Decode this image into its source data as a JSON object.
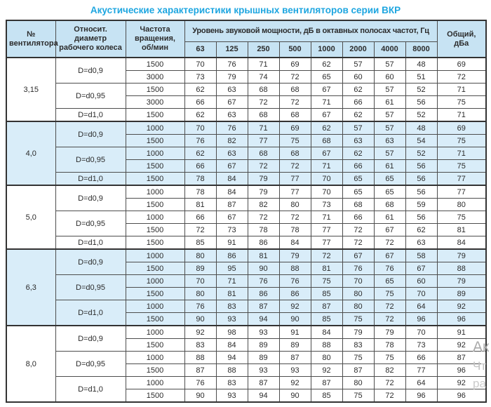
{
  "title": "Акустические характеристики крышных вентиляторов серии ВКР",
  "colors": {
    "title_accent": "#1ea6e0",
    "header_fill": "#c7e3f3",
    "shaded_row_fill": "#d9edf9",
    "border": "#4d4d4d",
    "outer_border": "#333333",
    "text": "#2b2b2b"
  },
  "table": {
    "header": {
      "fan_no": "№ вентилятора",
      "rel_diameter": "Относит. диаметр рабочего колеса",
      "speed": "Частота вращения, об/мин",
      "octave_span": "Уровень звуковой мощности, дБ в октавных полосах частот, Гц",
      "octave_bands": [
        "63",
        "125",
        "250",
        "500",
        "1000",
        "2000",
        "4000",
        "8000"
      ],
      "total": "Общий, дБа"
    },
    "groups": [
      {
        "fan": "3,15",
        "shaded": false,
        "diameters": [
          {
            "label": "D=d0,9",
            "rows": [
              {
                "speed": "1500",
                "levels": [
                  70,
                  76,
                  71,
                  69,
                  62,
                  57,
                  57,
                  48
                ],
                "total": 69
              },
              {
                "speed": "3000",
                "levels": [
                  73,
                  79,
                  74,
                  72,
                  65,
                  60,
                  60,
                  51
                ],
                "total": 72
              }
            ]
          },
          {
            "label": "D=d0,95",
            "rows": [
              {
                "speed": "1500",
                "levels": [
                  62,
                  63,
                  68,
                  68,
                  67,
                  62,
                  57,
                  52
                ],
                "total": 71
              },
              {
                "speed": "3000",
                "levels": [
                  66,
                  67,
                  72,
                  72,
                  71,
                  66,
                  61,
                  56
                ],
                "total": 75
              }
            ]
          },
          {
            "label": "D=d1,0",
            "rows": [
              {
                "speed": "1500",
                "levels": [
                  62,
                  63,
                  68,
                  68,
                  67,
                  62,
                  57,
                  52
                ],
                "total": 71
              }
            ]
          }
        ]
      },
      {
        "fan": "4,0",
        "shaded": true,
        "diameters": [
          {
            "label": "D=d0,9",
            "rows": [
              {
                "speed": "1000",
                "levels": [
                  70,
                  76,
                  71,
                  69,
                  62,
                  57,
                  57,
                  48
                ],
                "total": 69
              },
              {
                "speed": "1500",
                "levels": [
                  76,
                  82,
                  77,
                  75,
                  68,
                  63,
                  63,
                  54
                ],
                "total": 75
              }
            ]
          },
          {
            "label": "D=d0,95",
            "rows": [
              {
                "speed": "1000",
                "levels": [
                  62,
                  63,
                  68,
                  68,
                  67,
                  62,
                  57,
                  52
                ],
                "total": 71
              },
              {
                "speed": "1500",
                "levels": [
                  66,
                  67,
                  72,
                  72,
                  71,
                  66,
                  61,
                  56
                ],
                "total": 75
              }
            ]
          },
          {
            "label": "D=d1,0",
            "rows": [
              {
                "speed": "1500",
                "levels": [
                  78,
                  84,
                  79,
                  77,
                  70,
                  65,
                  65,
                  56
                ],
                "total": 77
              }
            ]
          }
        ]
      },
      {
        "fan": "5,0",
        "shaded": false,
        "diameters": [
          {
            "label": "D=d0,9",
            "rows": [
              {
                "speed": "1000",
                "levels": [
                  78,
                  84,
                  79,
                  77,
                  70,
                  65,
                  65,
                  56
                ],
                "total": 77
              },
              {
                "speed": "1500",
                "levels": [
                  81,
                  87,
                  82,
                  80,
                  73,
                  68,
                  68,
                  59
                ],
                "total": 80
              }
            ]
          },
          {
            "label": "D=d0,95",
            "rows": [
              {
                "speed": "1000",
                "levels": [
                  66,
                  67,
                  72,
                  72,
                  71,
                  66,
                  61,
                  56
                ],
                "total": 75
              },
              {
                "speed": "1500",
                "levels": [
                  72,
                  73,
                  78,
                  78,
                  77,
                  72,
                  67,
                  62
                ],
                "total": 81
              }
            ]
          },
          {
            "label": "D=d1,0",
            "rows": [
              {
                "speed": "1500",
                "levels": [
                  85,
                  91,
                  86,
                  84,
                  77,
                  72,
                  72,
                  63
                ],
                "total": 84
              }
            ]
          }
        ]
      },
      {
        "fan": "6,3",
        "shaded": true,
        "diameters": [
          {
            "label": "D=d0,9",
            "rows": [
              {
                "speed": "1000",
                "levels": [
                  80,
                  86,
                  81,
                  79,
                  72,
                  67,
                  67,
                  58
                ],
                "total": 79
              },
              {
                "speed": "1500",
                "levels": [
                  89,
                  95,
                  90,
                  88,
                  81,
                  76,
                  76,
                  67
                ],
                "total": 88
              }
            ]
          },
          {
            "label": "D=d0,95",
            "rows": [
              {
                "speed": "1000",
                "levels": [
                  70,
                  71,
                  76,
                  76,
                  75,
                  70,
                  65,
                  60
                ],
                "total": 79
              },
              {
                "speed": "1500",
                "levels": [
                  80,
                  81,
                  86,
                  86,
                  85,
                  80,
                  75,
                  70
                ],
                "total": 89
              }
            ]
          },
          {
            "label": "D=d1,0",
            "rows": [
              {
                "speed": "1000",
                "levels": [
                  76,
                  83,
                  87,
                  92,
                  87,
                  80,
                  72,
                  64
                ],
                "total": 92
              },
              {
                "speed": "1500",
                "levels": [
                  90,
                  93,
                  94,
                  90,
                  85,
                  75,
                  72,
                  96
                ],
                "total": 96
              }
            ]
          }
        ]
      },
      {
        "fan": "8,0",
        "shaded": false,
        "diameters": [
          {
            "label": "D=d0,9",
            "rows": [
              {
                "speed": "1000",
                "levels": [
                  92,
                  98,
                  93,
                  91,
                  84,
                  79,
                  79,
                  70
                ],
                "total": 91
              },
              {
                "speed": "1500",
                "levels": [
                  83,
                  84,
                  89,
                  89,
                  88,
                  83,
                  78,
                  73
                ],
                "total": 92
              }
            ]
          },
          {
            "label": "D=d0,95",
            "rows": [
              {
                "speed": "1000",
                "levels": [
                  88,
                  94,
                  89,
                  87,
                  80,
                  75,
                  75,
                  66
                ],
                "total": 87
              },
              {
                "speed": "1500",
                "levels": [
                  87,
                  88,
                  93,
                  93,
                  92,
                  87,
                  82,
                  77
                ],
                "total": 96
              }
            ]
          },
          {
            "label": "D=d1,0",
            "rows": [
              {
                "speed": "1000",
                "levels": [
                  76,
                  83,
                  87,
                  92,
                  87,
                  80,
                  72,
                  64
                ],
                "total": 92
              },
              {
                "speed": "1500",
                "levels": [
                  90,
                  93,
                  94,
                  90,
                  85,
                  75,
                  72,
                  96
                ],
                "total": 96
              }
            ]
          }
        ]
      }
    ]
  },
  "watermark": {
    "fragment_1": "Ак",
    "fragment_2": "Чт",
    "fragment_3": "ра"
  }
}
